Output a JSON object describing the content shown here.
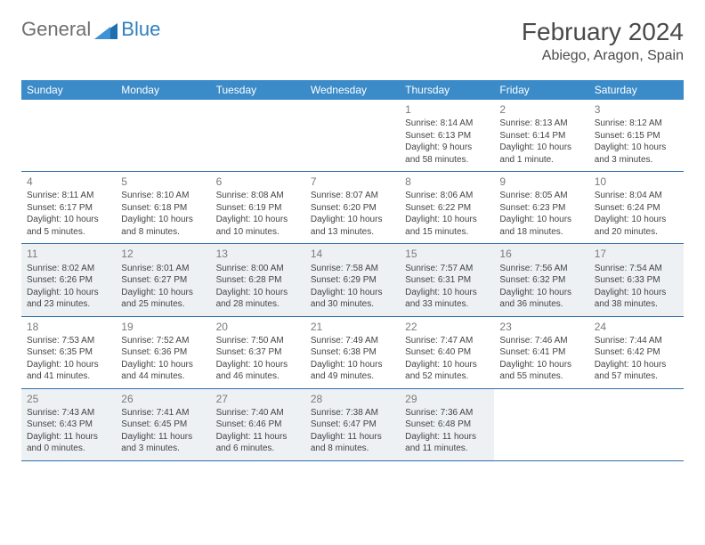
{
  "logo": {
    "general": "General",
    "blue": "Blue"
  },
  "title": "February 2024",
  "location": "Abiego, Aragon, Spain",
  "colors": {
    "header_bg": "#3b8bc8",
    "header_text": "#ffffff",
    "row_border": "#2f6fa8",
    "shaded_bg": "#eef1f3",
    "day_number": "#7a7a7a",
    "body_text": "#444444",
    "title_text": "#4a4a4a",
    "logo_gray": "#6f6f6f",
    "logo_blue": "#2f7fbf"
  },
  "day_labels": [
    "Sunday",
    "Monday",
    "Tuesday",
    "Wednesday",
    "Thursday",
    "Friday",
    "Saturday"
  ],
  "weeks": [
    [
      {
        "n": "",
        "sr": "",
        "ss": "",
        "dl": ""
      },
      {
        "n": "",
        "sr": "",
        "ss": "",
        "dl": ""
      },
      {
        "n": "",
        "sr": "",
        "ss": "",
        "dl": ""
      },
      {
        "n": "",
        "sr": "",
        "ss": "",
        "dl": ""
      },
      {
        "n": "1",
        "sr": "Sunrise: 8:14 AM",
        "ss": "Sunset: 6:13 PM",
        "dl": "Daylight: 9 hours and 58 minutes."
      },
      {
        "n": "2",
        "sr": "Sunrise: 8:13 AM",
        "ss": "Sunset: 6:14 PM",
        "dl": "Daylight: 10 hours and 1 minute."
      },
      {
        "n": "3",
        "sr": "Sunrise: 8:12 AM",
        "ss": "Sunset: 6:15 PM",
        "dl": "Daylight: 10 hours and 3 minutes."
      }
    ],
    [
      {
        "n": "4",
        "sr": "Sunrise: 8:11 AM",
        "ss": "Sunset: 6:17 PM",
        "dl": "Daylight: 10 hours and 5 minutes."
      },
      {
        "n": "5",
        "sr": "Sunrise: 8:10 AM",
        "ss": "Sunset: 6:18 PM",
        "dl": "Daylight: 10 hours and 8 minutes."
      },
      {
        "n": "6",
        "sr": "Sunrise: 8:08 AM",
        "ss": "Sunset: 6:19 PM",
        "dl": "Daylight: 10 hours and 10 minutes."
      },
      {
        "n": "7",
        "sr": "Sunrise: 8:07 AM",
        "ss": "Sunset: 6:20 PM",
        "dl": "Daylight: 10 hours and 13 minutes."
      },
      {
        "n": "8",
        "sr": "Sunrise: 8:06 AM",
        "ss": "Sunset: 6:22 PM",
        "dl": "Daylight: 10 hours and 15 minutes."
      },
      {
        "n": "9",
        "sr": "Sunrise: 8:05 AM",
        "ss": "Sunset: 6:23 PM",
        "dl": "Daylight: 10 hours and 18 minutes."
      },
      {
        "n": "10",
        "sr": "Sunrise: 8:04 AM",
        "ss": "Sunset: 6:24 PM",
        "dl": "Daylight: 10 hours and 20 minutes."
      }
    ],
    [
      {
        "n": "11",
        "sr": "Sunrise: 8:02 AM",
        "ss": "Sunset: 6:26 PM",
        "dl": "Daylight: 10 hours and 23 minutes."
      },
      {
        "n": "12",
        "sr": "Sunrise: 8:01 AM",
        "ss": "Sunset: 6:27 PM",
        "dl": "Daylight: 10 hours and 25 minutes."
      },
      {
        "n": "13",
        "sr": "Sunrise: 8:00 AM",
        "ss": "Sunset: 6:28 PM",
        "dl": "Daylight: 10 hours and 28 minutes."
      },
      {
        "n": "14",
        "sr": "Sunrise: 7:58 AM",
        "ss": "Sunset: 6:29 PM",
        "dl": "Daylight: 10 hours and 30 minutes."
      },
      {
        "n": "15",
        "sr": "Sunrise: 7:57 AM",
        "ss": "Sunset: 6:31 PM",
        "dl": "Daylight: 10 hours and 33 minutes."
      },
      {
        "n": "16",
        "sr": "Sunrise: 7:56 AM",
        "ss": "Sunset: 6:32 PM",
        "dl": "Daylight: 10 hours and 36 minutes."
      },
      {
        "n": "17",
        "sr": "Sunrise: 7:54 AM",
        "ss": "Sunset: 6:33 PM",
        "dl": "Daylight: 10 hours and 38 minutes."
      }
    ],
    [
      {
        "n": "18",
        "sr": "Sunrise: 7:53 AM",
        "ss": "Sunset: 6:35 PM",
        "dl": "Daylight: 10 hours and 41 minutes."
      },
      {
        "n": "19",
        "sr": "Sunrise: 7:52 AM",
        "ss": "Sunset: 6:36 PM",
        "dl": "Daylight: 10 hours and 44 minutes."
      },
      {
        "n": "20",
        "sr": "Sunrise: 7:50 AM",
        "ss": "Sunset: 6:37 PM",
        "dl": "Daylight: 10 hours and 46 minutes."
      },
      {
        "n": "21",
        "sr": "Sunrise: 7:49 AM",
        "ss": "Sunset: 6:38 PM",
        "dl": "Daylight: 10 hours and 49 minutes."
      },
      {
        "n": "22",
        "sr": "Sunrise: 7:47 AM",
        "ss": "Sunset: 6:40 PM",
        "dl": "Daylight: 10 hours and 52 minutes."
      },
      {
        "n": "23",
        "sr": "Sunrise: 7:46 AM",
        "ss": "Sunset: 6:41 PM",
        "dl": "Daylight: 10 hours and 55 minutes."
      },
      {
        "n": "24",
        "sr": "Sunrise: 7:44 AM",
        "ss": "Sunset: 6:42 PM",
        "dl": "Daylight: 10 hours and 57 minutes."
      }
    ],
    [
      {
        "n": "25",
        "sr": "Sunrise: 7:43 AM",
        "ss": "Sunset: 6:43 PM",
        "dl": "Daylight: 11 hours and 0 minutes."
      },
      {
        "n": "26",
        "sr": "Sunrise: 7:41 AM",
        "ss": "Sunset: 6:45 PM",
        "dl": "Daylight: 11 hours and 3 minutes."
      },
      {
        "n": "27",
        "sr": "Sunrise: 7:40 AM",
        "ss": "Sunset: 6:46 PM",
        "dl": "Daylight: 11 hours and 6 minutes."
      },
      {
        "n": "28",
        "sr": "Sunrise: 7:38 AM",
        "ss": "Sunset: 6:47 PM",
        "dl": "Daylight: 11 hours and 8 minutes."
      },
      {
        "n": "29",
        "sr": "Sunrise: 7:36 AM",
        "ss": "Sunset: 6:48 PM",
        "dl": "Daylight: 11 hours and 11 minutes."
      },
      {
        "n": "",
        "sr": "",
        "ss": "",
        "dl": ""
      },
      {
        "n": "",
        "sr": "",
        "ss": "",
        "dl": ""
      }
    ]
  ],
  "shaded_weeks": [
    2,
    4
  ]
}
